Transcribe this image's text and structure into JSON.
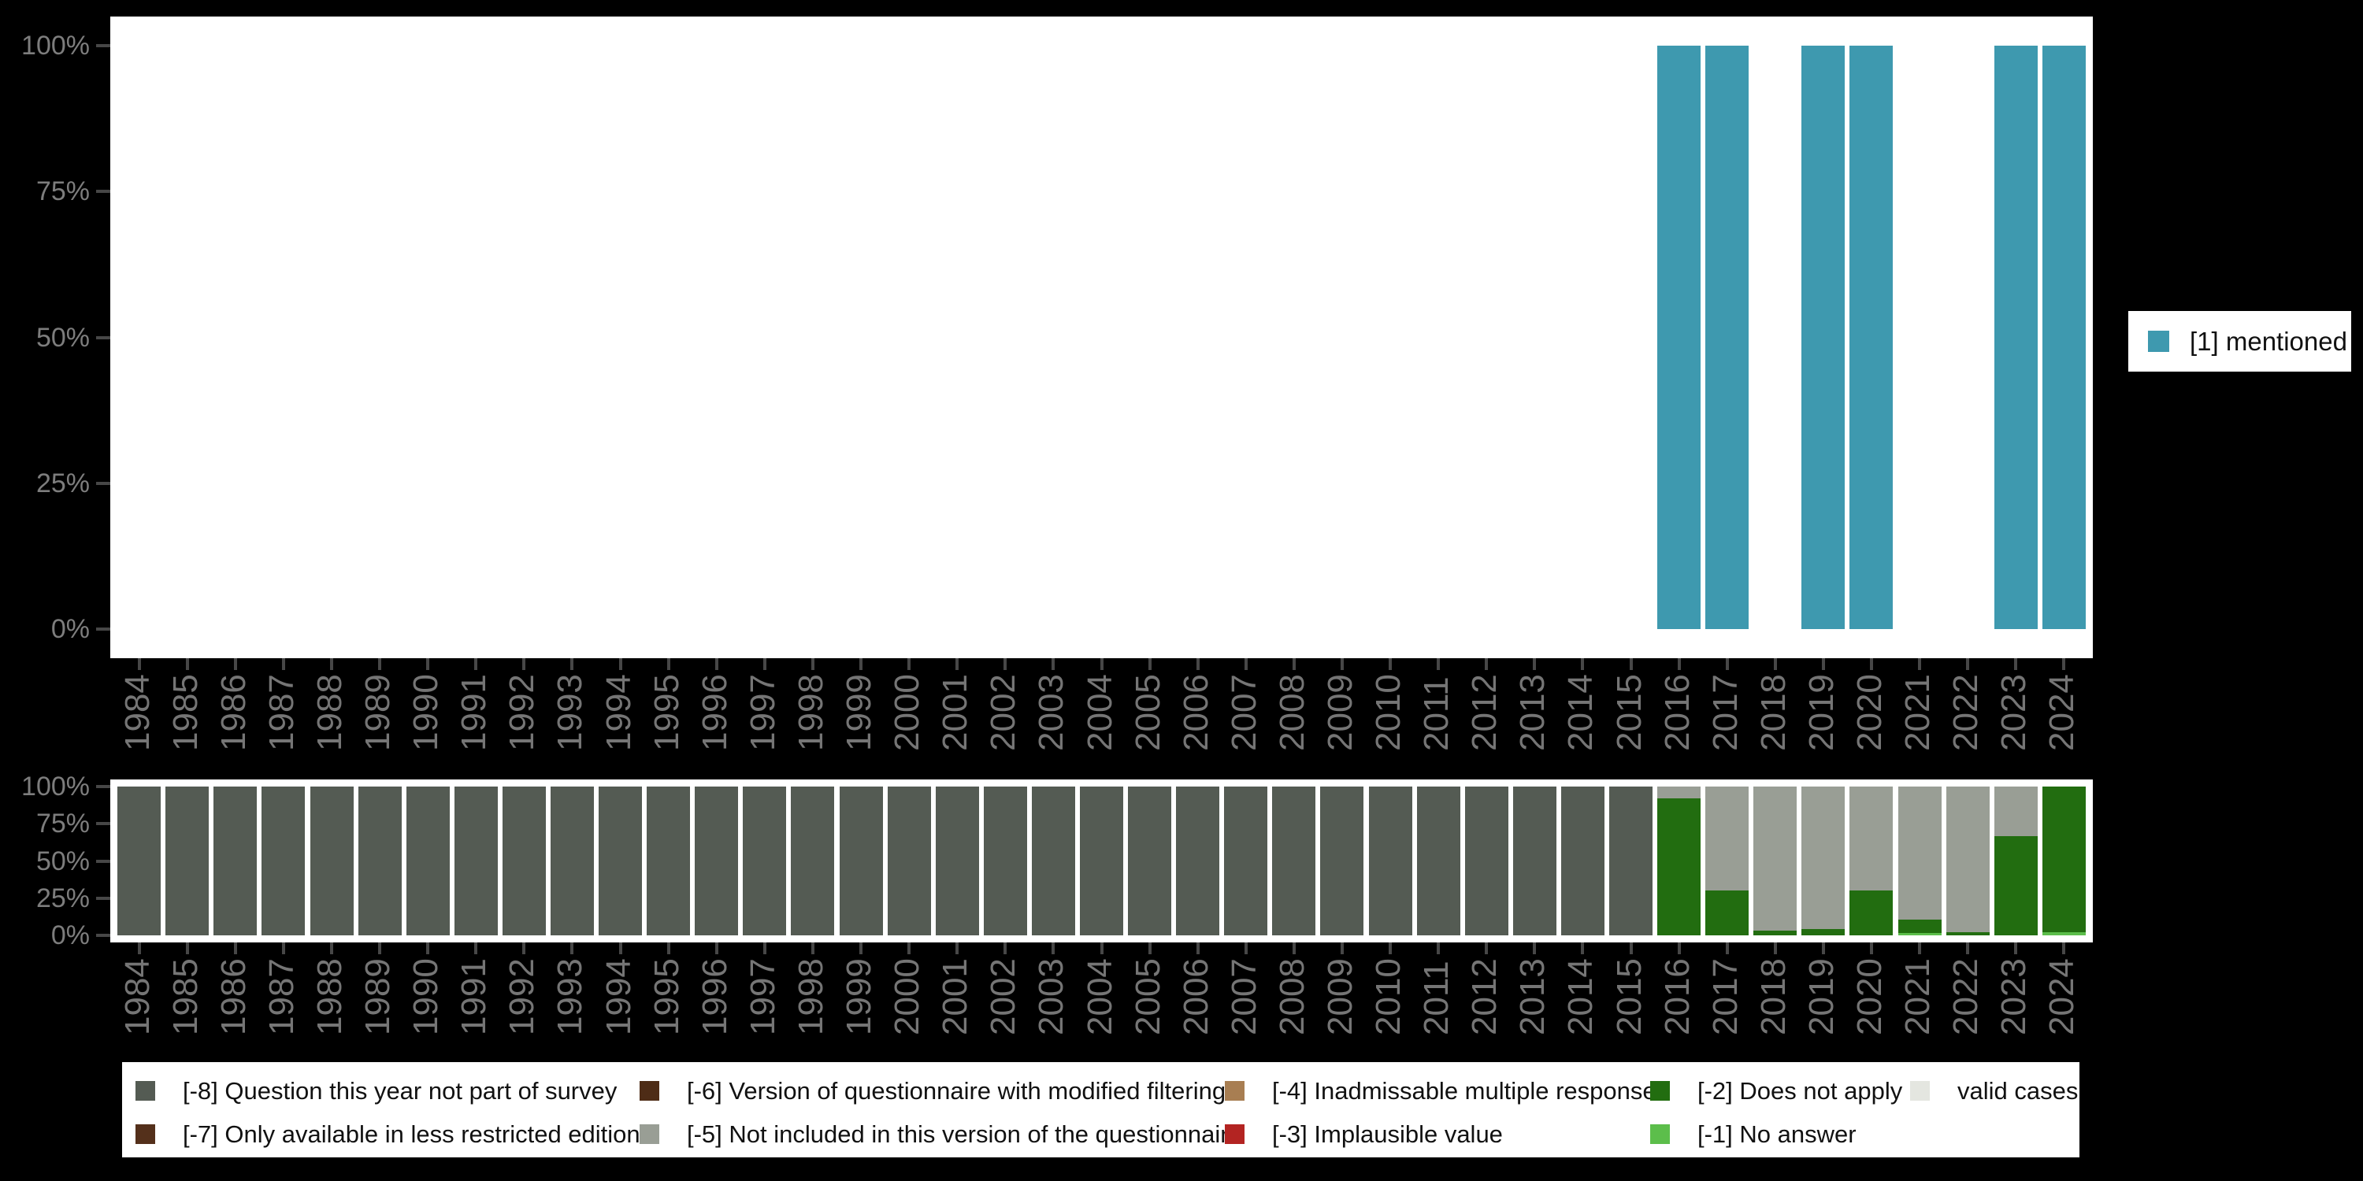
{
  "page": {
    "background": "#000000",
    "panel_background": "#ffffff"
  },
  "colors": {
    "mentioned": "#3e99af",
    "-8": "#545b53",
    "-7": "#54301b",
    "-6": "#4e2c16",
    "-5": "#999e95",
    "-4": "#a87e52",
    "-3": "#b32422",
    "-2": "#226d10",
    "-1": "#5cbe4b",
    "valid": "#e4e6e0",
    "axis_text": "#757575",
    "tick": "#474747",
    "legend_text": "#111111"
  },
  "y_axis": {
    "tick_values": [
      100,
      75,
      50,
      25,
      0
    ],
    "tick_labels": [
      "100%",
      "75%",
      "50%",
      "25%",
      "0%"
    ]
  },
  "chart_data": [
    {
      "type": "bar",
      "title": "",
      "xlabel": "",
      "ylabel": "",
      "ylim": [
        0,
        100
      ],
      "yticks": [
        "100%",
        "75%",
        "50%",
        "25%",
        "0%"
      ],
      "grid": false,
      "categories": [
        "1984",
        "1985",
        "1986",
        "1987",
        "1988",
        "1989",
        "1990",
        "1991",
        "1992",
        "1993",
        "1994",
        "1995",
        "1996",
        "1997",
        "1998",
        "1999",
        "2000",
        "2001",
        "2002",
        "2003",
        "2004",
        "2005",
        "2006",
        "2007",
        "2008",
        "2009",
        "2010",
        "2011",
        "2012",
        "2013",
        "2014",
        "2015",
        "2016",
        "2017",
        "2018",
        "2019",
        "2020",
        "2021",
        "2022",
        "2023",
        "2024"
      ],
      "series": [
        {
          "name": "[1] mentioned",
          "color_key": "mentioned",
          "values": {
            "2016": 100,
            "2017": 100,
            "2019": 100,
            "2020": 100,
            "2023": 100,
            "2024": 100
          }
        }
      ],
      "legend": {
        "position": "right",
        "label": "[1] mentioned",
        "color_key": "mentioned"
      }
    },
    {
      "type": "stacked_bar",
      "title": "",
      "xlabel": "",
      "ylabel": "",
      "ylim": [
        0,
        100
      ],
      "yticks": [
        "100%",
        "75%",
        "50%",
        "25%",
        "0%"
      ],
      "grid": false,
      "categories": [
        "1984",
        "1985",
        "1986",
        "1987",
        "1988",
        "1989",
        "1990",
        "1991",
        "1992",
        "1993",
        "1994",
        "1995",
        "1996",
        "1997",
        "1998",
        "1999",
        "2000",
        "2001",
        "2002",
        "2003",
        "2004",
        "2005",
        "2006",
        "2007",
        "2008",
        "2009",
        "2010",
        "2011",
        "2012",
        "2013",
        "2014",
        "2015",
        "2016",
        "2017",
        "2018",
        "2019",
        "2020",
        "2021",
        "2022",
        "2023",
        "2024"
      ],
      "stacks": {
        "1984": [
          [
            "-8",
            100
          ]
        ],
        "1985": [
          [
            "-8",
            100
          ]
        ],
        "1986": [
          [
            "-8",
            100
          ]
        ],
        "1987": [
          [
            "-8",
            100
          ]
        ],
        "1988": [
          [
            "-8",
            100
          ]
        ],
        "1989": [
          [
            "-8",
            100
          ]
        ],
        "1990": [
          [
            "-8",
            100
          ]
        ],
        "1991": [
          [
            "-8",
            100
          ]
        ],
        "1992": [
          [
            "-8",
            100
          ]
        ],
        "1993": [
          [
            "-8",
            100
          ]
        ],
        "1994": [
          [
            "-8",
            100
          ]
        ],
        "1995": [
          [
            "-8",
            100
          ]
        ],
        "1996": [
          [
            "-8",
            100
          ]
        ],
        "1997": [
          [
            "-8",
            100
          ]
        ],
        "1998": [
          [
            "-8",
            100
          ]
        ],
        "1999": [
          [
            "-8",
            100
          ]
        ],
        "2000": [
          [
            "-8",
            100
          ]
        ],
        "2001": [
          [
            "-8",
            100
          ]
        ],
        "2002": [
          [
            "-8",
            100
          ]
        ],
        "2003": [
          [
            "-8",
            100
          ]
        ],
        "2004": [
          [
            "-8",
            100
          ]
        ],
        "2005": [
          [
            "-8",
            100
          ]
        ],
        "2006": [
          [
            "-8",
            100
          ]
        ],
        "2007": [
          [
            "-8",
            100
          ]
        ],
        "2008": [
          [
            "-8",
            100
          ]
        ],
        "2009": [
          [
            "-8",
            100
          ]
        ],
        "2010": [
          [
            "-8",
            100
          ]
        ],
        "2011": [
          [
            "-8",
            100
          ]
        ],
        "2012": [
          [
            "-8",
            100
          ]
        ],
        "2013": [
          [
            "-8",
            100
          ]
        ],
        "2014": [
          [
            "-8",
            100
          ]
        ],
        "2015": [
          [
            "-8",
            100
          ]
        ],
        "2016": [
          [
            "-2",
            92
          ],
          [
            "-5",
            8
          ]
        ],
        "2017": [
          [
            "-2",
            30
          ],
          [
            "-5",
            70
          ]
        ],
        "2018": [
          [
            "-2",
            3
          ],
          [
            "-5",
            97
          ]
        ],
        "2019": [
          [
            "-2",
            4
          ],
          [
            "-5",
            96
          ]
        ],
        "2020": [
          [
            "-2",
            30
          ],
          [
            "-5",
            70
          ]
        ],
        "2021": [
          [
            "-1",
            1.5
          ],
          [
            "-2",
            9
          ],
          [
            "-5",
            89.5
          ]
        ],
        "2022": [
          [
            "-2",
            2
          ],
          [
            "-5",
            98
          ]
        ],
        "2023": [
          [
            "-2",
            67
          ],
          [
            "-5",
            33
          ]
        ],
        "2024": [
          [
            "-1",
            2
          ],
          [
            "-2",
            98
          ]
        ]
      }
    }
  ],
  "bottom_legend": {
    "columns": [
      [
        {
          "code": "-8",
          "label": "[-8] Question this year not part of survey"
        },
        {
          "code": "-7",
          "label": "[-7] Only available in less restricted edition"
        }
      ],
      [
        {
          "code": "-6",
          "label": "[-6] Version of questionnaire with modified filtering"
        },
        {
          "code": "-5",
          "label": "[-5] Not included in this version of the questionnaire"
        }
      ],
      [
        {
          "code": "-4",
          "label": "[-4] Inadmissable multiple response"
        },
        {
          "code": "-3",
          "label": "[-3] Implausible value"
        }
      ],
      [
        {
          "code": "-2",
          "label": "[-2] Does not apply"
        },
        {
          "code": "-1",
          "label": "[-1] No answer"
        }
      ],
      [
        {
          "code": "valid",
          "label": "valid cases"
        }
      ]
    ]
  }
}
